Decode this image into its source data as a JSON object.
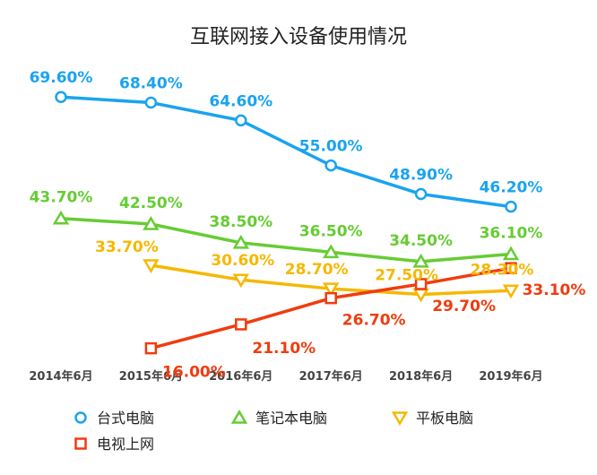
{
  "chart_data": {
    "type": "line",
    "title": "互联网接入设备使用情况",
    "xlabel": "",
    "ylabel": "",
    "categories": [
      "2014年6月",
      "2015年6月",
      "2016年6月",
      "2017年6月",
      "2018年6月",
      "2019年6月"
    ],
    "ylim": [
      10,
      75
    ],
    "grid": false,
    "legend_position": "bottom",
    "series": [
      {
        "name": "台式电脑",
        "marker": "circle",
        "color": "#1aa3f0",
        "values": [
          69.6,
          68.4,
          64.6,
          55.0,
          48.9,
          46.2
        ],
        "labels": [
          "69.60%",
          "68.40%",
          "64.60%",
          "55.00%",
          "48.90%",
          "46.20%"
        ]
      },
      {
        "name": "笔记本电脑",
        "marker": "triangle-up",
        "color": "#66cc33",
        "values": [
          43.7,
          42.5,
          38.5,
          36.5,
          34.5,
          36.1
        ],
        "labels": [
          "43.70%",
          "42.50%",
          "38.50%",
          "36.50%",
          "34.50%",
          "36.10%"
        ]
      },
      {
        "name": "平板电脑",
        "marker": "triangle-down",
        "color": "#f5b800",
        "values": [
          null,
          33.7,
          30.6,
          28.7,
          27.5,
          28.3
        ],
        "labels": [
          null,
          "33.70%",
          "30.60%",
          "28.70%",
          "27.50%",
          "28.30%"
        ]
      },
      {
        "name": "电视上网",
        "marker": "square",
        "color": "#f03c0f",
        "values": [
          null,
          16.0,
          21.1,
          26.7,
          29.7,
          33.1
        ],
        "labels": [
          null,
          "16.00%",
          "21.10%",
          "26.70%",
          "29.70%",
          "33.10%"
        ]
      }
    ]
  }
}
